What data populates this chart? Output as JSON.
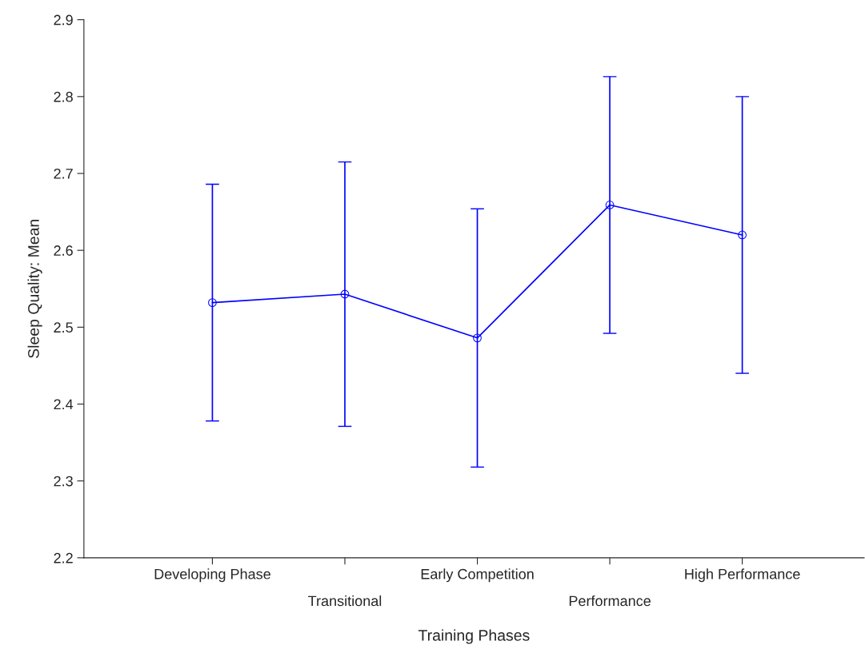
{
  "chart_data": {
    "type": "line",
    "xlabel": "Training Phases",
    "ylabel": "Sleep Quality: Mean",
    "categories": [
      "Developing Phase",
      "Transitional",
      "Early Competition",
      "Performance",
      "High Performance"
    ],
    "series": [
      {
        "color": "#0000ff",
        "values": [
          2.532,
          2.543,
          2.486,
          2.659,
          2.62
        ],
        "errors": [
          0.154,
          0.172,
          0.168,
          0.167,
          0.18
        ]
      }
    ],
    "ylim": [
      2.2,
      2.9
    ],
    "yticks": [
      2.2,
      2.3,
      2.4,
      2.5,
      2.6,
      2.7,
      2.8,
      2.9
    ],
    "marker": "circle",
    "line_style": "solid",
    "grid": false,
    "legend": false
  }
}
